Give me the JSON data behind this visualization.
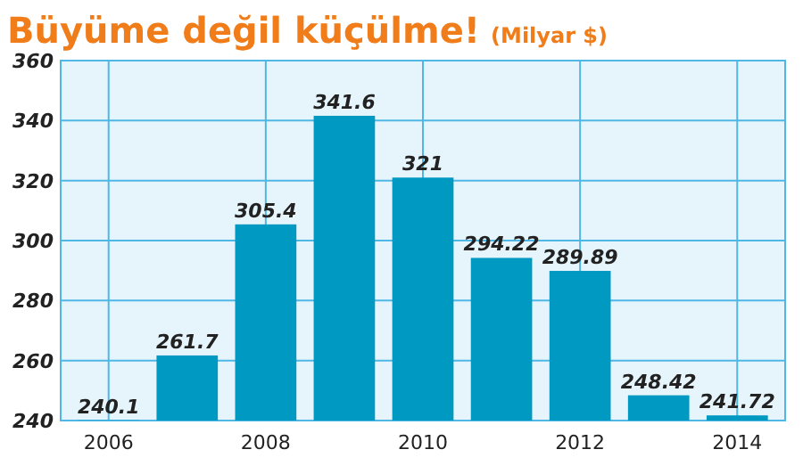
{
  "chart_data": {
    "type": "bar",
    "title": "Büyüme değil küçülme!",
    "subtitle": "(Milyar $)",
    "categories": [
      "2006",
      null,
      "2008",
      null,
      "2010",
      null,
      "2012",
      null,
      "2014"
    ],
    "values": [
      240.1,
      261.7,
      305.4,
      341.6,
      321,
      294.22,
      289.89,
      248.42,
      241.72
    ],
    "value_labels": [
      "240.1",
      "261.7",
      "305.4",
      "341.6",
      "321",
      "294.22",
      "289.89",
      "248.42",
      "241.72"
    ],
    "color": "#0099c2",
    "ylim": [
      240,
      360
    ],
    "yticks": [
      240,
      260,
      280,
      300,
      320,
      340,
      360
    ],
    "grid": true
  }
}
